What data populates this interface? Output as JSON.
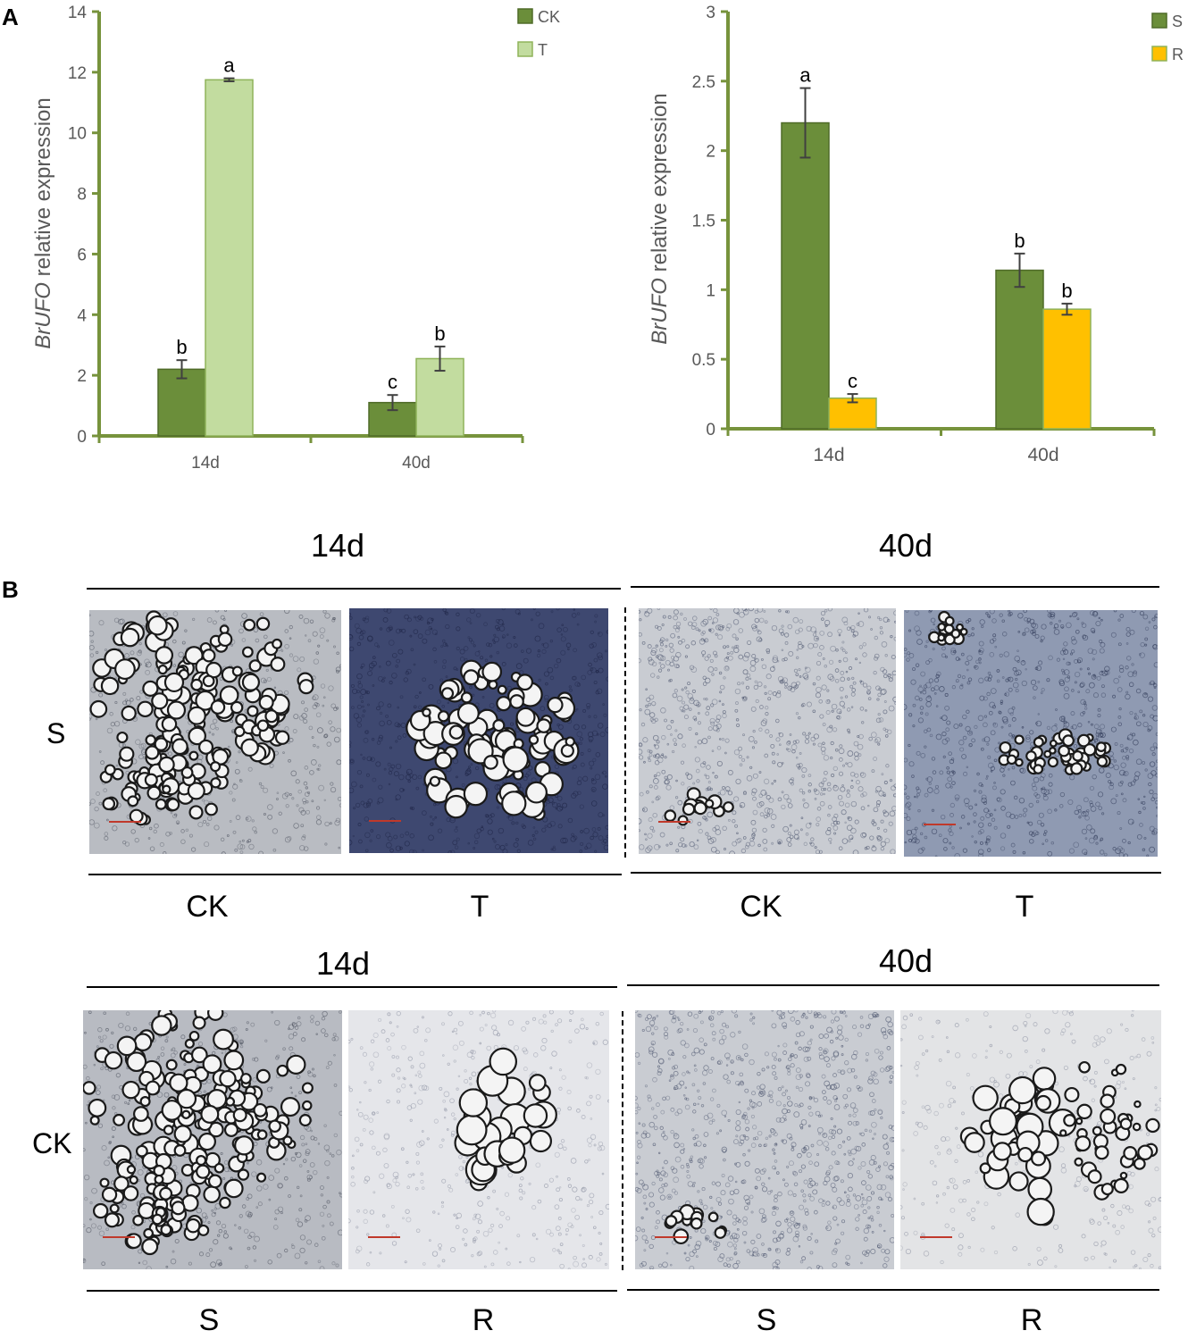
{
  "panel_letters": {
    "a": "A",
    "b": "B"
  },
  "chart_data": [
    {
      "type": "bar",
      "categories": [
        "14d",
        "40d"
      ],
      "series": [
        {
          "name": "CK",
          "color": "#6b8e3a",
          "values": [
            2.2,
            1.1
          ],
          "errors": [
            0.3,
            0.25
          ],
          "letters": [
            "b",
            "c"
          ]
        },
        {
          "name": "T",
          "color": "#c2dc9f",
          "values": [
            11.75,
            2.55
          ],
          "errors": [
            0.05,
            0.4
          ],
          "letters": [
            "a",
            "b"
          ]
        }
      ],
      "ylabel_italic": "BrUFO",
      "ylabel_rest": " relative expression",
      "ylim": [
        0,
        14
      ],
      "yticks": [
        "0",
        "2",
        "4",
        "6",
        "8",
        "10",
        "12",
        "14"
      ],
      "legend_position": "top-right",
      "grid": false
    },
    {
      "type": "bar",
      "categories": [
        "14d",
        "40d"
      ],
      "series": [
        {
          "name": "S",
          "color": "#6b8e3a",
          "values": [
            2.2,
            1.14
          ],
          "errors": [
            0.25,
            0.12
          ],
          "letters": [
            "a",
            "b"
          ]
        },
        {
          "name": "R",
          "color": "#ffc000",
          "values": [
            0.22,
            0.86
          ],
          "errors": [
            0.03,
            0.04
          ],
          "letters": [
            "c",
            "b"
          ]
        }
      ],
      "ylabel_italic": "BrUFO",
      "ylabel_rest": " relative expression",
      "ylim": [
        0,
        3
      ],
      "yticks": [
        "0",
        "0.5",
        "1",
        "1.5",
        "2",
        "2.5",
        "3"
      ],
      "legend_position": "top-right",
      "grid": false
    }
  ],
  "micrographs": {
    "top": {
      "headers": [
        "14d",
        "40d"
      ],
      "row_label": "S",
      "column_labels": [
        "CK",
        "T",
        "CK",
        "T"
      ]
    },
    "bottom": {
      "headers": [
        "14d",
        "40d"
      ],
      "row_label": "CK",
      "column_labels": [
        "S",
        "R",
        "S",
        "R"
      ]
    }
  }
}
